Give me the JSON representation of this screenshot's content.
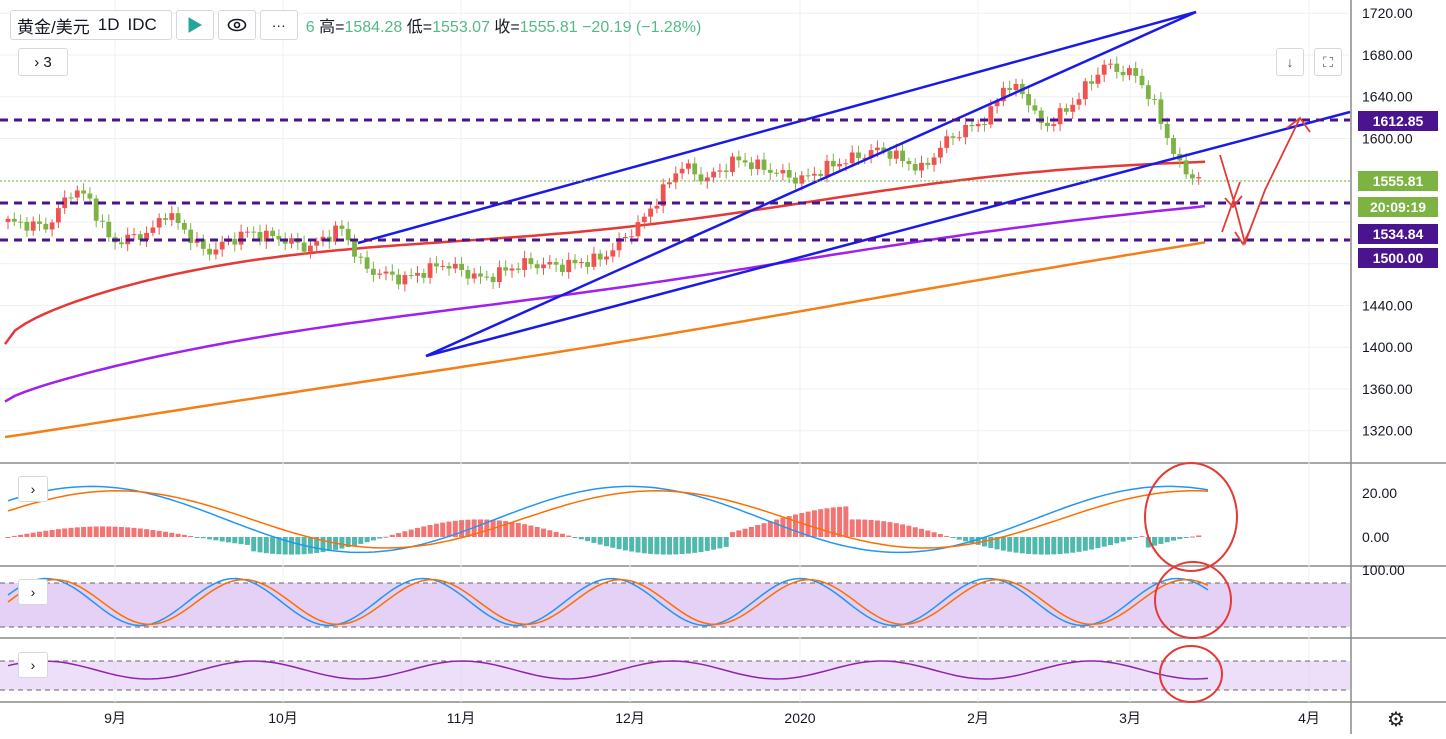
{
  "header": {
    "symbol": "黄金/美元",
    "interval": "1D",
    "source": "IDC",
    "more_label": "···",
    "ohlc_prefix": "6",
    "high_label": "高=",
    "high": "1584.28",
    "low_label": "低=",
    "low": "1553.07",
    "close_label": "收=",
    "close": "1555.81",
    "change": "−20.19 (−1.28%)"
  },
  "indicator_count": "3",
  "price_tags": {
    "level_1": "1612.85",
    "last_price": "1555.81",
    "countdown": "20:09:19",
    "level_2": "1534.84",
    "level_3": "1500.00"
  },
  "colors": {
    "up": "#ef5350",
    "down": "#7cb342",
    "trend": "#1a1ae8",
    "level": "#4b148f",
    "ma_red": "#e53935",
    "ma_purple": "#a020f0",
    "ma_orange": "#f57f17",
    "annot": "#e53935"
  },
  "chart_data": {
    "type": "candlestick",
    "price_axis": {
      "ticks": [
        1320,
        1360,
        1400,
        1440,
        1480,
        1520,
        1560,
        1600,
        1640,
        1680,
        1720
      ],
      "tick_labels": [
        "1320.00",
        "1360.00",
        "1400.00",
        "1440.00",
        "",
        "",
        "",
        "1600.00",
        "1640.00",
        "1680.00",
        "1720.00"
      ],
      "range": [
        1290,
        1725
      ]
    },
    "time_axis": {
      "labels": [
        "9月",
        "10月",
        "11月",
        "12月",
        "2020",
        "2月",
        "3月",
        "4月"
      ]
    },
    "horizontal_levels": [
      1612.85,
      1555.81,
      1534.84,
      1500.0,
      1520
    ],
    "moving_averages": [
      {
        "color": "red",
        "start": 1403,
        "end": 1575
      },
      {
        "color": "purple",
        "start": 1348,
        "end": 1534
      },
      {
        "color": "orange",
        "start": 1314,
        "end": 1500
      }
    ],
    "macd": {
      "ticks": [
        "20.00",
        "0.00"
      ]
    },
    "stoch": {
      "ticks": [
        "100.00"
      ]
    },
    "rsi": {
      "ticks": []
    }
  }
}
